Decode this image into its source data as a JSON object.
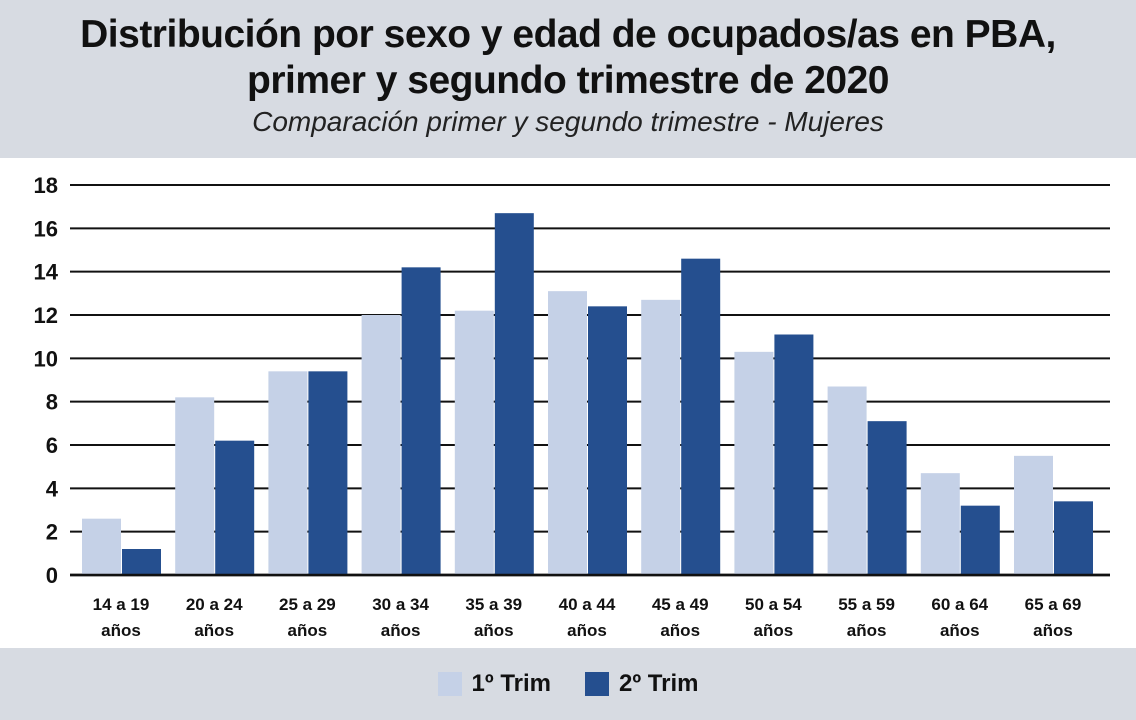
{
  "header": {
    "title": "Distribución por sexo y edad de ocupados/as en PBA,\nprimer y segundo trimestre de 2020",
    "subtitle": "Comparación primer y segundo trimestre - Mujeres"
  },
  "colors": {
    "series1": "#c5d1e7",
    "series2": "#254f8f",
    "grid": "#111111",
    "header_bg": "#d7dbe2"
  },
  "chart_data": {
    "type": "bar",
    "title": "Distribución por sexo y edad de ocupados/as en PBA, primer y segundo trimestre de 2020",
    "subtitle": "Comparación primer y segundo trimestre - Mujeres",
    "xlabel": "",
    "ylabel": "",
    "ylim": [
      0,
      18
    ],
    "yticks": [
      "0",
      "2",
      "4",
      "6",
      "8",
      "10",
      "12",
      "14",
      "16",
      "18"
    ],
    "grid": true,
    "legend_position": "bottom-center",
    "categories": [
      [
        "14 a 19",
        "años"
      ],
      [
        "20 a 24",
        "años"
      ],
      [
        "25 a 29",
        "años"
      ],
      [
        "30 a 34",
        "años"
      ],
      [
        "35 a 39",
        "años"
      ],
      [
        "40 a 44",
        "años"
      ],
      [
        "45 a 49",
        "años"
      ],
      [
        "50 a 54",
        "años"
      ],
      [
        "55 a 59",
        "años"
      ],
      [
        "60 a 64",
        "años"
      ],
      [
        "65 a 69",
        "años"
      ]
    ],
    "series": [
      {
        "name": "1º Trim",
        "values": [
          2.6,
          8.2,
          9.4,
          12.0,
          12.2,
          13.1,
          12.7,
          10.3,
          8.7,
          4.7,
          5.5
        ]
      },
      {
        "name": "2º Trim",
        "values": [
          1.2,
          6.2,
          9.4,
          14.2,
          16.7,
          12.4,
          14.6,
          11.1,
          7.1,
          3.2,
          3.4
        ]
      }
    ]
  }
}
